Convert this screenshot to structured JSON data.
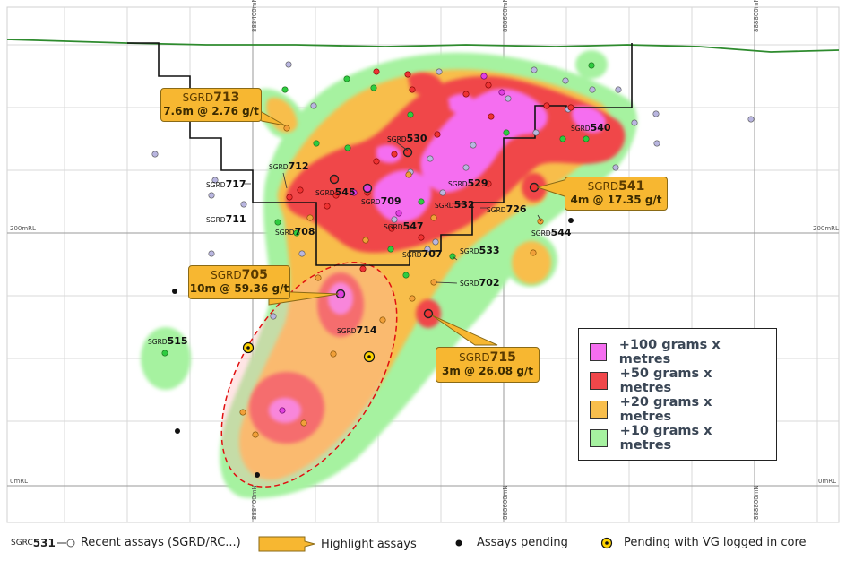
{
  "grid": {
    "easting_top": [
      "888400mN",
      "888600mN",
      "888800mN"
    ],
    "easting_bottom": [
      "888400mN",
      "888600mN",
      "888800mN"
    ],
    "rl_left": [
      "200mRL",
      "0mRL"
    ],
    "rl_right": [
      "200mRL",
      "0mRL"
    ]
  },
  "holes": [
    {
      "prefix": "SGRD",
      "num": "530"
    },
    {
      "prefix": "SGRD",
      "num": "540"
    },
    {
      "prefix": "SGRD",
      "num": "712"
    },
    {
      "prefix": "SGRD",
      "num": "717"
    },
    {
      "prefix": "SGRD",
      "num": "545"
    },
    {
      "prefix": "SGRD",
      "num": "709"
    },
    {
      "prefix": "SGRD",
      "num": "529"
    },
    {
      "prefix": "SGRD",
      "num": "532"
    },
    {
      "prefix": "SGRD",
      "num": "726"
    },
    {
      "prefix": "SGRD",
      "num": "711"
    },
    {
      "prefix": "SGRD",
      "num": "708"
    },
    {
      "prefix": "SGRD",
      "num": "547"
    },
    {
      "prefix": "SGRD",
      "num": "544"
    },
    {
      "prefix": "SGRD",
      "num": "707"
    },
    {
      "prefix": "SGRD",
      "num": "533"
    },
    {
      "prefix": "SGRD",
      "num": "702"
    },
    {
      "prefix": "SGRD",
      "num": "714"
    },
    {
      "prefix": "SGRD",
      "num": "515"
    }
  ],
  "highlights": [
    {
      "prefix": "SGRD",
      "num": "713",
      "result": "7.6m @ 2.76 g/t"
    },
    {
      "prefix": "SGRD",
      "num": "541",
      "result": "4m @ 17.35 g/t"
    },
    {
      "prefix": "SGRD",
      "num": "705",
      "result": "10m @ 59.36 g/t"
    },
    {
      "prefix": "SGRD",
      "num": "715",
      "result": "3m @ 26.08 g/t"
    }
  ],
  "legend": [
    {
      "label": "+100 grams x metres",
      "color": "#f56ef0"
    },
    {
      "label": "+50 grams x metres",
      "color": "#f0474a"
    },
    {
      "label": "+20 grams x metres",
      "color": "#f8be4c"
    },
    {
      "label": "+10 grams x metres",
      "color": "#a6f2a0"
    }
  ],
  "footer": {
    "recent_prefix": "SGRC",
    "recent_num": "531",
    "recent_label": "Recent assays (SGRD/RC...)",
    "highlight_label": "Highlight assays",
    "pending_label": "Assays pending",
    "vg_label": "Pending with VG logged in core"
  },
  "colors": {
    "pink": "#f56ef0",
    "red": "#f0474a",
    "orange": "#f8be4c",
    "green": "#a6f2a0",
    "topo": "#2e8b2e",
    "dot_recent": "#b9b6e0",
    "dot_green": "#2ecc40",
    "dot_red": "#e33",
    "dot_orange": "#f1a03a"
  }
}
